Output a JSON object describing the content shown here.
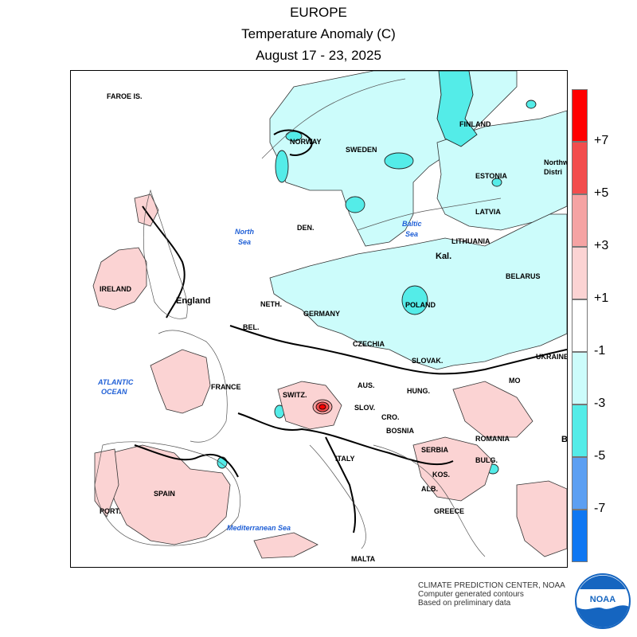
{
  "header": {
    "line1": "EUROPE",
    "line2": "Temperature Anomaly (C)",
    "line3": "August 17 - 23, 2025"
  },
  "map_labels": {
    "faroe": "FAROE IS.",
    "norway": "NORWAY",
    "sweden": "SWEDEN",
    "finland": "FINLAND",
    "estonia": "ESTONIA",
    "northwest": "Northw",
    "distr": "Distri",
    "latvia": "LATVIA",
    "lithuania": "LITHUANIA",
    "kal": "Kal.",
    "belarus": "BELARUS",
    "den": "DEN.",
    "ireland": "IRELAND",
    "england": "England",
    "neth": "NETH.",
    "bel": "BEL.",
    "germany": "GERMANY",
    "poland": "POLAND",
    "czechia": "CZECHIA",
    "slovak": "SLOVAK.",
    "ukraine": "UKRAINE",
    "france": "FRANCE",
    "switz": "SWITZ.",
    "aus": "AUS.",
    "hung": "HUNG.",
    "mo": "MO",
    "slov": "SLOV.",
    "cro": "CRO.",
    "bosnia": "BOSNIA",
    "romania": "ROMANIA",
    "serbia": "SERBIA",
    "bulg": "BULG.",
    "italy": "ITALY",
    "kos": "KOS.",
    "alb": "ALB.",
    "spain": "SPAIN",
    "port": "PORT.",
    "greece": "GREECE",
    "malta": "MALTA",
    "b": "B"
  },
  "sea_labels": {
    "north_sea_1": "North",
    "north_sea_2": "Sea",
    "baltic_1": "Baltic",
    "baltic_2": "Sea",
    "atlantic_1": "ATLANTIC",
    "atlantic_2": "OCEAN",
    "med": "Mediterranean Sea"
  },
  "legend": {
    "colors": [
      "#ff0000",
      "#f24d4d",
      "#f5a3a3",
      "#fbd3d3",
      "#ffffff",
      "#ccfcfb",
      "#54ece8",
      "#5c9ff2",
      "#0f77f2"
    ],
    "ticks": [
      "+7",
      "+5",
      "+3",
      "+1",
      "-1",
      "-3",
      "-5",
      "-7"
    ]
  },
  "credits": {
    "line1": "CLIMATE PREDICTION CENTER, NOAA",
    "line2": "Computer generated contours",
    "line3": "Based on preliminary data"
  },
  "logo": {
    "text": "NOAA",
    "color": "#1565c0"
  }
}
